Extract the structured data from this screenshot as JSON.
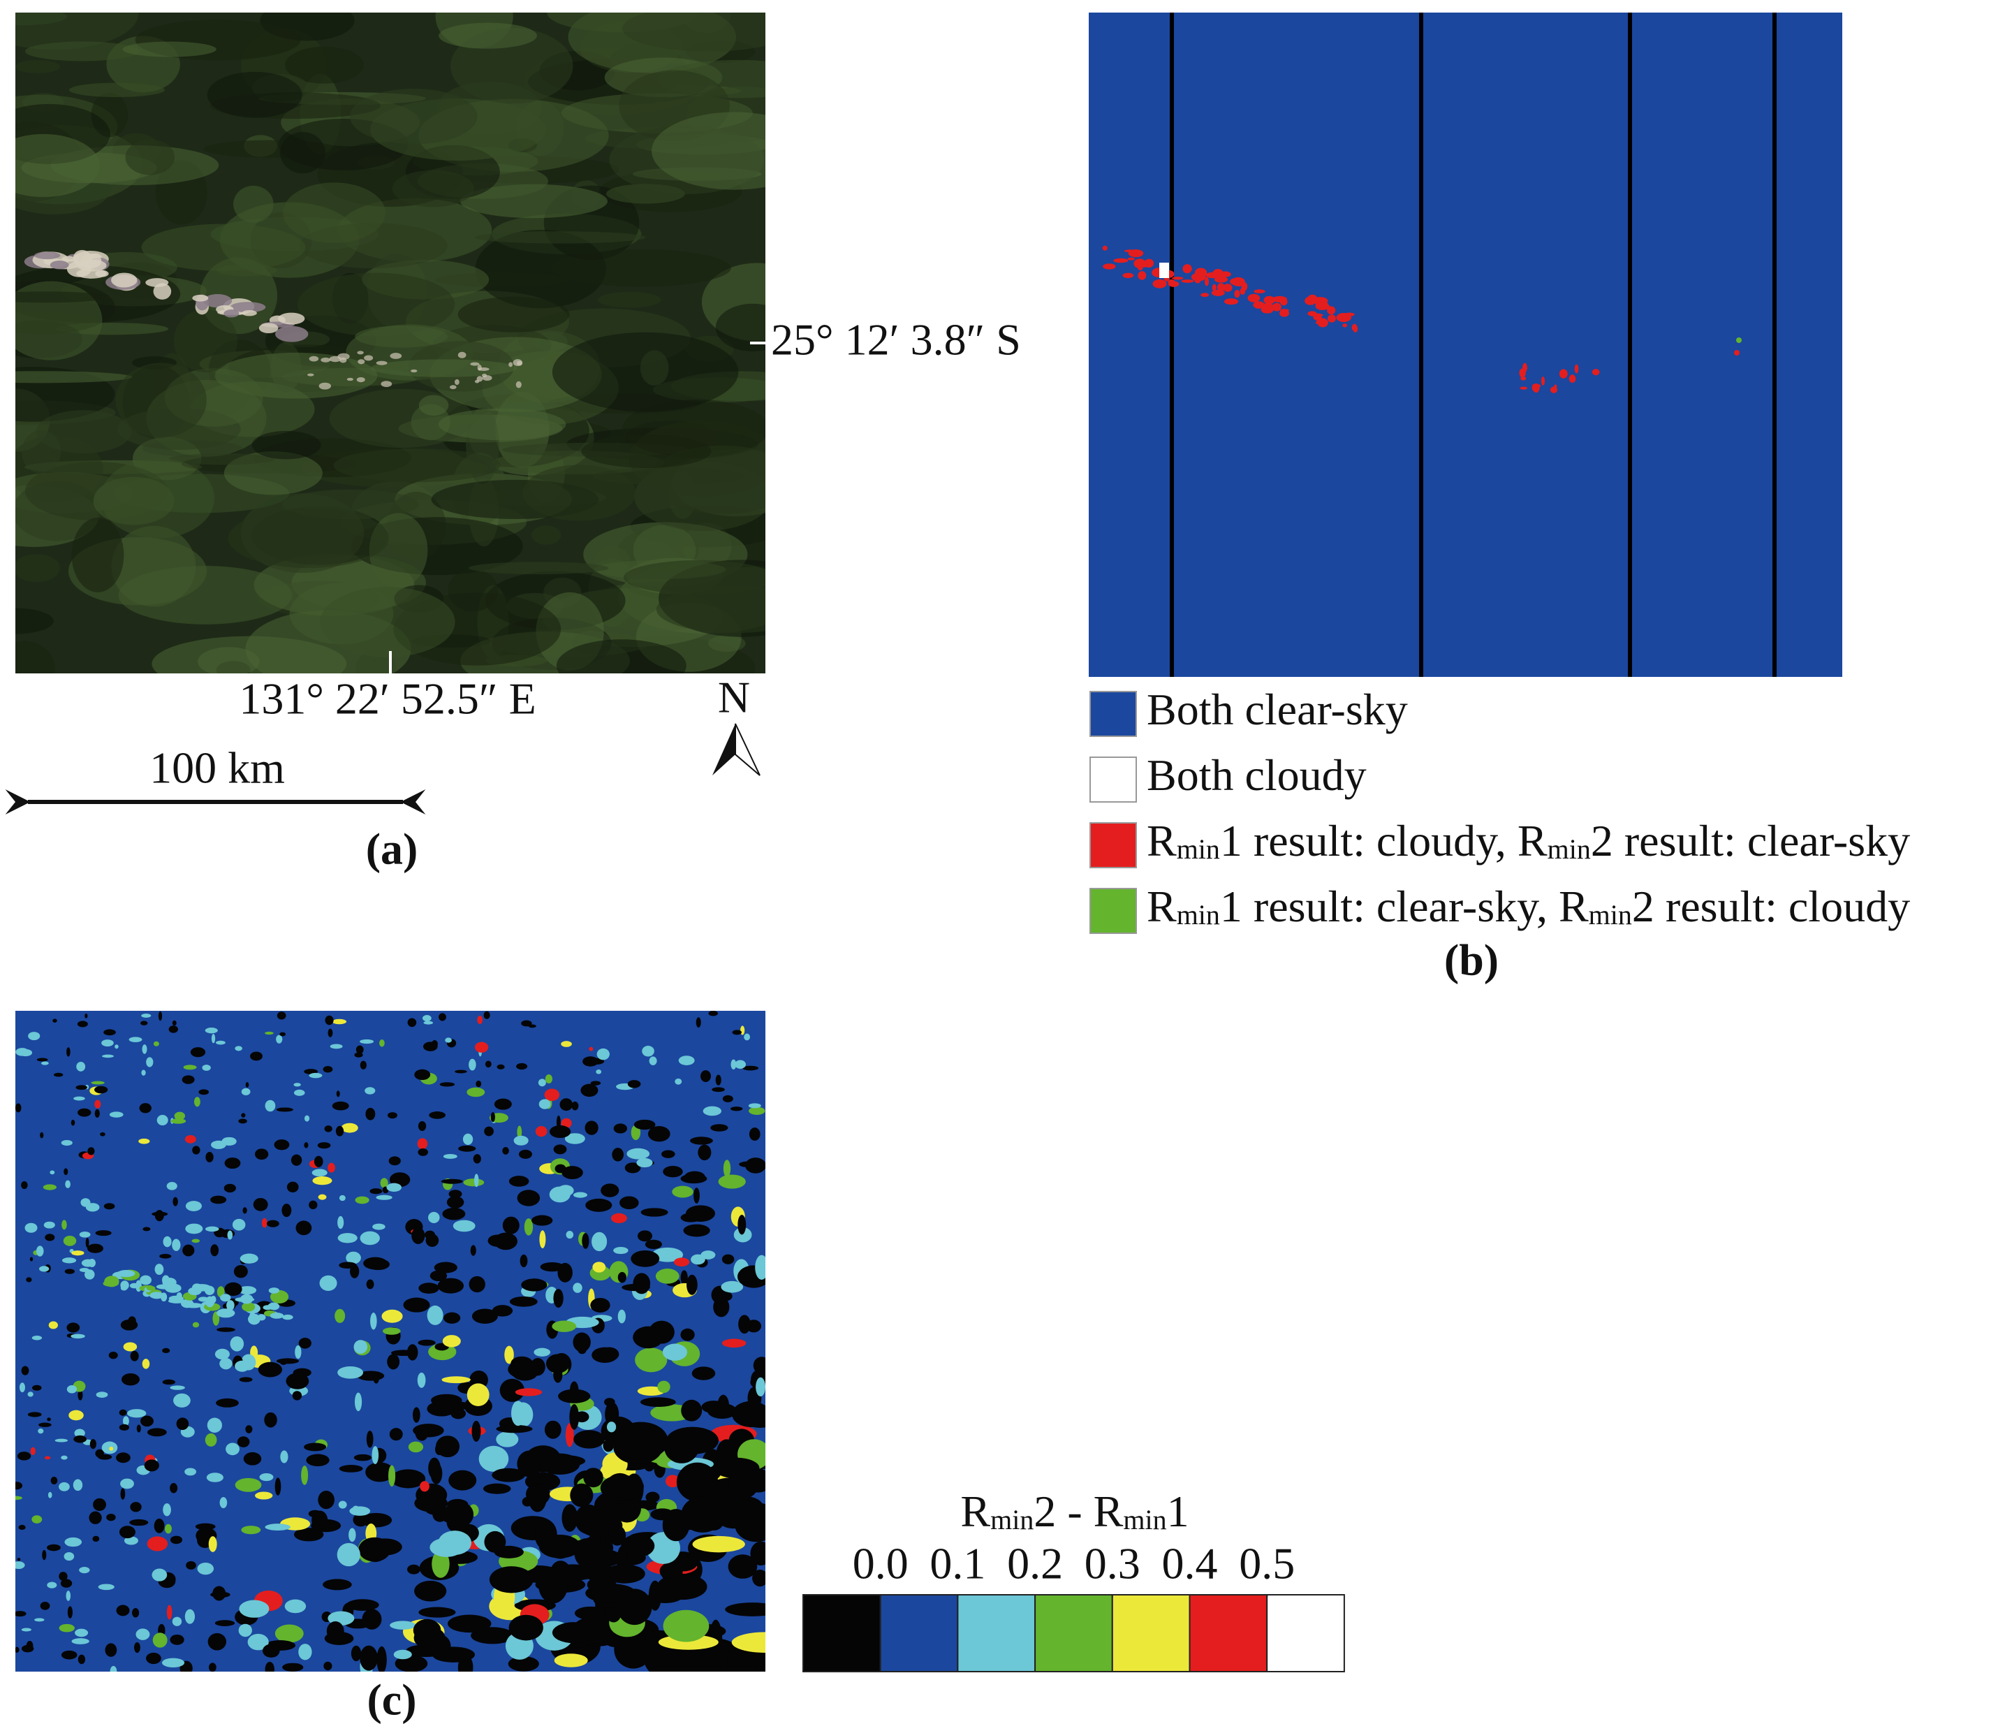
{
  "panel_a": {
    "label": "(a)",
    "latitude": "25° 12′ 3.8″ S",
    "longitude": "131° 22′ 52.5″ E",
    "north": "N",
    "scale_bar": "100 km"
  },
  "panel_b": {
    "label": "(b)",
    "legend": [
      {
        "color": "#1b479e",
        "segments": [
          {
            "text": "Both clear-sky"
          }
        ]
      },
      {
        "color": "#ffffff",
        "segments": [
          {
            "text": "Both cloudy"
          }
        ]
      },
      {
        "color": "#e41e1e",
        "segments": [
          {
            "text": "R"
          },
          {
            "text": "min",
            "sub": true
          },
          {
            "text": "1 result: cloudy, R"
          },
          {
            "text": "min",
            "sub": true
          },
          {
            "text": "2 result: clear-sky"
          }
        ]
      },
      {
        "color": "#64b42d",
        "segments": [
          {
            "text": "R"
          },
          {
            "text": "min",
            "sub": true
          },
          {
            "text": "1 result: clear-sky, R"
          },
          {
            "text": "min",
            "sub": true
          },
          {
            "text": "2 result: cloudy"
          }
        ]
      }
    ]
  },
  "panel_c": {
    "label": "(c)",
    "colorbar": {
      "title": [
        {
          "text": "R"
        },
        {
          "text": "min",
          "sub": true
        },
        {
          "text": "2 - R"
        },
        {
          "text": "min",
          "sub": true
        },
        {
          "text": "1"
        }
      ],
      "ticks": [
        {
          "value": 0,
          "label": "0.0"
        },
        0.1,
        0.2,
        0.3,
        0.4,
        0.5
      ],
      "colors": [
        "#050505",
        "#1b479e",
        "#6cc7d6",
        "#64b42d",
        "#ece83a",
        "#e41e1e",
        "#ffffff"
      ]
    }
  }
}
